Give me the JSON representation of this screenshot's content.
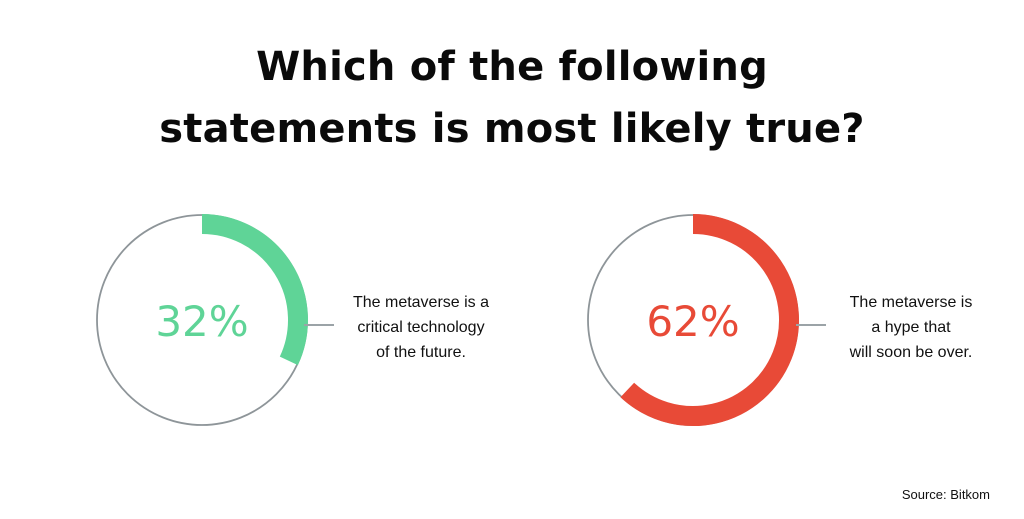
{
  "title": {
    "line1": "Which of the following",
    "line2": "statements is most likely true?"
  },
  "chart_data": {
    "type": "pie",
    "title": "Which of the following statements is most likely true?",
    "series": [
      {
        "value": 32,
        "label": "32%",
        "statement": [
          "The metaverse is a",
          "critical technology",
          "of the future."
        ],
        "color": "#5fd497"
      },
      {
        "value": 62,
        "label": "62%",
        "statement": [
          "The metaverse is",
          "a hype that",
          "will soon be over."
        ],
        "color": "#e84a37"
      }
    ],
    "track_color": "#8e9599"
  },
  "source": "Source: Bitkom"
}
